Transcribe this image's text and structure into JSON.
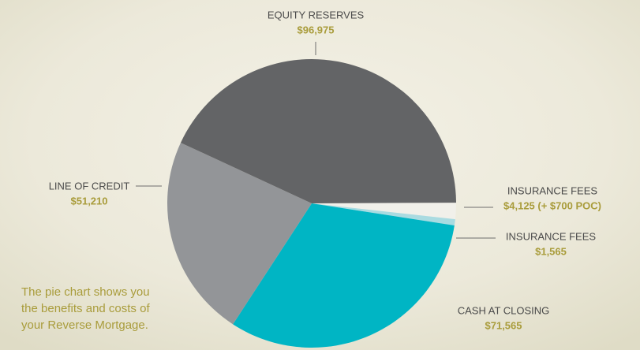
{
  "chart_data": {
    "type": "pie",
    "categories": [
      "INSURANCE FEES",
      "INSURANCE FEES",
      "CASH AT CLOSING",
      "LINE OF CREDIT",
      "EQUITY RESERVES"
    ],
    "values": [
      4125,
      1565,
      71565,
      51210,
      96975
    ],
    "value_labels": [
      "$4,125 (+ $700 POC)",
      "$1,565",
      "$71,565",
      "$51,210",
      "$96,975"
    ],
    "colors": [
      "#f1f0ea",
      "#a9dbe1",
      "#00b5c4",
      "#939598",
      "#636466"
    ],
    "note_lines": [
      "The pie chart shows you",
      "the benefits and costs of",
      "your Reverse Mortgage."
    ]
  }
}
